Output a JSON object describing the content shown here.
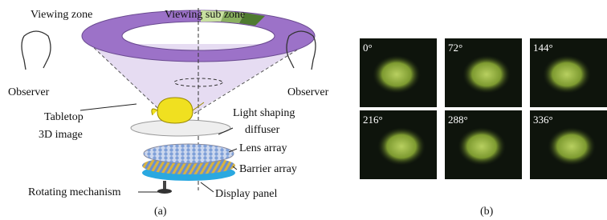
{
  "panel_a": {
    "caption": "(a)",
    "labels": {
      "viewing_zone": "Viewing zone",
      "viewing_sub_zone": "Viewing sub zone",
      "observer_left": "Observer",
      "observer_right": "Observer",
      "tabletop_line1": "Tabletop",
      "tabletop_line2": "3D image",
      "diffuser_line1": "Light shaping",
      "diffuser_line2": "diffuser",
      "lens_array": "Lens array",
      "barrier_array": "Barrier array",
      "rotating_mechanism": "Rotating mechanism",
      "display_panel": "Display panel"
    }
  },
  "panel_b": {
    "caption": "(b)",
    "images": [
      {
        "label": "0°"
      },
      {
        "label": "72°"
      },
      {
        "label": "144°"
      },
      {
        "label": "216°"
      },
      {
        "label": "288°"
      },
      {
        "label": "336°"
      }
    ]
  }
}
